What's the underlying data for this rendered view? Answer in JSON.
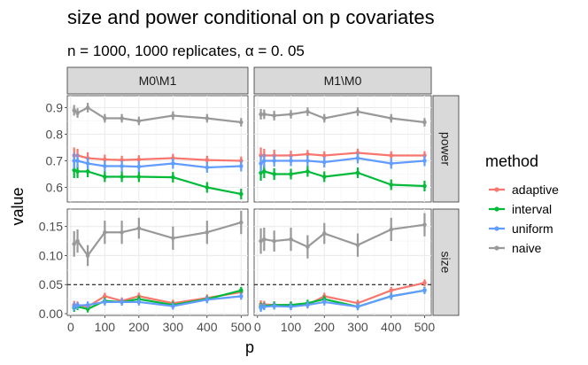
{
  "title": "size and power conditional on p covariates",
  "subtitle": "n = 1000, 1000 replicates, α = 0. 05",
  "chart_data": {
    "type": "line",
    "xlabel": "p",
    "ylabel": "value",
    "x": [
      10,
      20,
      50,
      100,
      150,
      200,
      300,
      400,
      500
    ],
    "x_ticks": [
      0,
      100,
      200,
      300,
      400,
      500
    ],
    "x_tick_labels": [
      "0",
      "100",
      "200",
      "300",
      "400",
      "500"
    ],
    "xlim": [
      -10,
      520
    ],
    "columns": [
      "M0\\M1",
      "M1\\M0"
    ],
    "rows": [
      "power",
      "size"
    ],
    "reference_line": {
      "row": "size",
      "y": 0.05,
      "style": "dashed"
    },
    "legend": {
      "title": "method",
      "position": "right",
      "entries": [
        "adaptive",
        "interval",
        "uniform",
        "naive"
      ]
    },
    "colors": {
      "adaptive": "#F8766D",
      "interval": "#00BA38",
      "uniform": "#619CFF",
      "naive": "#999999"
    },
    "rows_meta": {
      "power": {
        "ylim": [
          0.545,
          0.945
        ],
        "y_ticks": [
          0.6,
          0.7,
          0.8,
          0.9
        ],
        "y_tick_labels": [
          "0.6",
          "0.7",
          "0.8",
          "0.9"
        ]
      },
      "size": {
        "ylim": [
          -0.003,
          0.18
        ],
        "y_ticks": [
          0.0,
          0.05,
          0.1,
          0.15
        ],
        "y_tick_labels": [
          "0.00",
          "0.05",
          "0.10",
          "0.15"
        ]
      }
    },
    "panels": [
      {
        "row": "power",
        "col": "M0\\M1",
        "series": [
          {
            "name": "adaptive",
            "values": [
              0.72,
              0.72,
              0.71,
              0.705,
              0.703,
              0.705,
              0.71,
              0.703,
              0.7
            ],
            "err": [
              0.03,
              0.025,
              0.022,
              0.018,
              0.016,
              0.016,
              0.016,
              0.016,
              0.016
            ]
          },
          {
            "name": "interval",
            "values": [
              0.665,
              0.66,
              0.66,
              0.64,
              0.64,
              0.64,
              0.638,
              0.6,
              0.575
            ],
            "err": [
              0.03,
              0.025,
              0.022,
              0.02,
              0.02,
              0.02,
              0.02,
              0.02,
              0.02
            ]
          },
          {
            "name": "uniform",
            "values": [
              0.7,
              0.7,
              0.69,
              0.68,
              0.68,
              0.678,
              0.69,
              0.675,
              0.68
            ],
            "err": [
              0.03,
              0.025,
              0.022,
              0.02,
              0.02,
              0.02,
              0.02,
              0.02,
              0.02
            ]
          },
          {
            "name": "naive",
            "values": [
              0.89,
              0.88,
              0.9,
              0.86,
              0.86,
              0.85,
              0.87,
              0.86,
              0.845
            ],
            "err": [
              0.02,
              0.018,
              0.018,
              0.016,
              0.016,
              0.016,
              0.016,
              0.016,
              0.016
            ]
          }
        ]
      },
      {
        "row": "power",
        "col": "M1\\M0",
        "series": [
          {
            "name": "adaptive",
            "values": [
              0.72,
              0.72,
              0.72,
              0.72,
              0.725,
              0.72,
              0.73,
              0.72,
              0.72
            ],
            "err": [
              0.03,
              0.025,
              0.022,
              0.018,
              0.016,
              0.016,
              0.016,
              0.016,
              0.016
            ]
          },
          {
            "name": "interval",
            "values": [
              0.655,
              0.66,
              0.65,
              0.65,
              0.66,
              0.64,
              0.655,
              0.61,
              0.605
            ],
            "err": [
              0.03,
              0.025,
              0.022,
              0.02,
              0.02,
              0.02,
              0.02,
              0.02,
              0.02
            ]
          },
          {
            "name": "uniform",
            "values": [
              0.69,
              0.7,
              0.7,
              0.7,
              0.7,
              0.695,
              0.71,
              0.69,
              0.7
            ],
            "err": [
              0.03,
              0.025,
              0.022,
              0.02,
              0.02,
              0.02,
              0.02,
              0.02,
              0.02
            ]
          },
          {
            "name": "naive",
            "values": [
              0.875,
              0.875,
              0.87,
              0.875,
              0.885,
              0.86,
              0.885,
              0.86,
              0.845
            ],
            "err": [
              0.02,
              0.018,
              0.018,
              0.016,
              0.016,
              0.016,
              0.016,
              0.016,
              0.016
            ]
          }
        ]
      },
      {
        "row": "size",
        "col": "M0\\M1",
        "series": [
          {
            "name": "adaptive",
            "values": [
              0.015,
              0.015,
              0.012,
              0.03,
              0.022,
              0.03,
              0.018,
              0.027,
              0.037
            ],
            "err": [
              0.007,
              0.006,
              0.006,
              0.006,
              0.006,
              0.006,
              0.006,
              0.006,
              0.006
            ]
          },
          {
            "name": "interval",
            "values": [
              0.01,
              0.012,
              0.008,
              0.022,
              0.02,
              0.025,
              0.015,
              0.025,
              0.04
            ],
            "err": [
              0.007,
              0.006,
              0.006,
              0.006,
              0.006,
              0.006,
              0.006,
              0.006,
              0.006
            ]
          },
          {
            "name": "uniform",
            "values": [
              0.012,
              0.014,
              0.015,
              0.02,
              0.02,
              0.02,
              0.013,
              0.024,
              0.03
            ],
            "err": [
              0.007,
              0.006,
              0.006,
              0.006,
              0.006,
              0.006,
              0.006,
              0.006,
              0.006
            ]
          },
          {
            "name": "naive",
            "values": [
              0.12,
              0.125,
              0.1,
              0.14,
              0.14,
              0.147,
              0.13,
              0.14,
              0.157
            ],
            "err": [
              0.022,
              0.02,
              0.018,
              0.02,
              0.02,
              0.018,
              0.02,
              0.02,
              0.02
            ]
          }
        ]
      },
      {
        "row": "size",
        "col": "M1\\M0",
        "series": [
          {
            "name": "adaptive",
            "values": [
              0.016,
              0.016,
              0.015,
              0.015,
              0.015,
              0.03,
              0.018,
              0.04,
              0.053
            ],
            "err": [
              0.007,
              0.006,
              0.006,
              0.006,
              0.006,
              0.006,
              0.006,
              0.006,
              0.006
            ]
          },
          {
            "name": "interval",
            "values": [
              0.012,
              0.013,
              0.015,
              0.015,
              0.018,
              0.025,
              0.012,
              0.03,
              0.04
            ],
            "err": [
              0.007,
              0.006,
              0.006,
              0.006,
              0.006,
              0.006,
              0.006,
              0.006,
              0.006
            ]
          },
          {
            "name": "uniform",
            "values": [
              0.01,
              0.012,
              0.013,
              0.012,
              0.015,
              0.02,
              0.012,
              0.03,
              0.04
            ],
            "err": [
              0.007,
              0.006,
              0.006,
              0.006,
              0.006,
              0.006,
              0.006,
              0.006,
              0.006
            ]
          },
          {
            "name": "naive",
            "values": [
              0.125,
              0.128,
              0.125,
              0.128,
              0.115,
              0.138,
              0.118,
              0.145,
              0.153
            ],
            "err": [
              0.022,
              0.02,
              0.018,
              0.02,
              0.02,
              0.018,
              0.02,
              0.02,
              0.02
            ]
          }
        ]
      }
    ]
  }
}
